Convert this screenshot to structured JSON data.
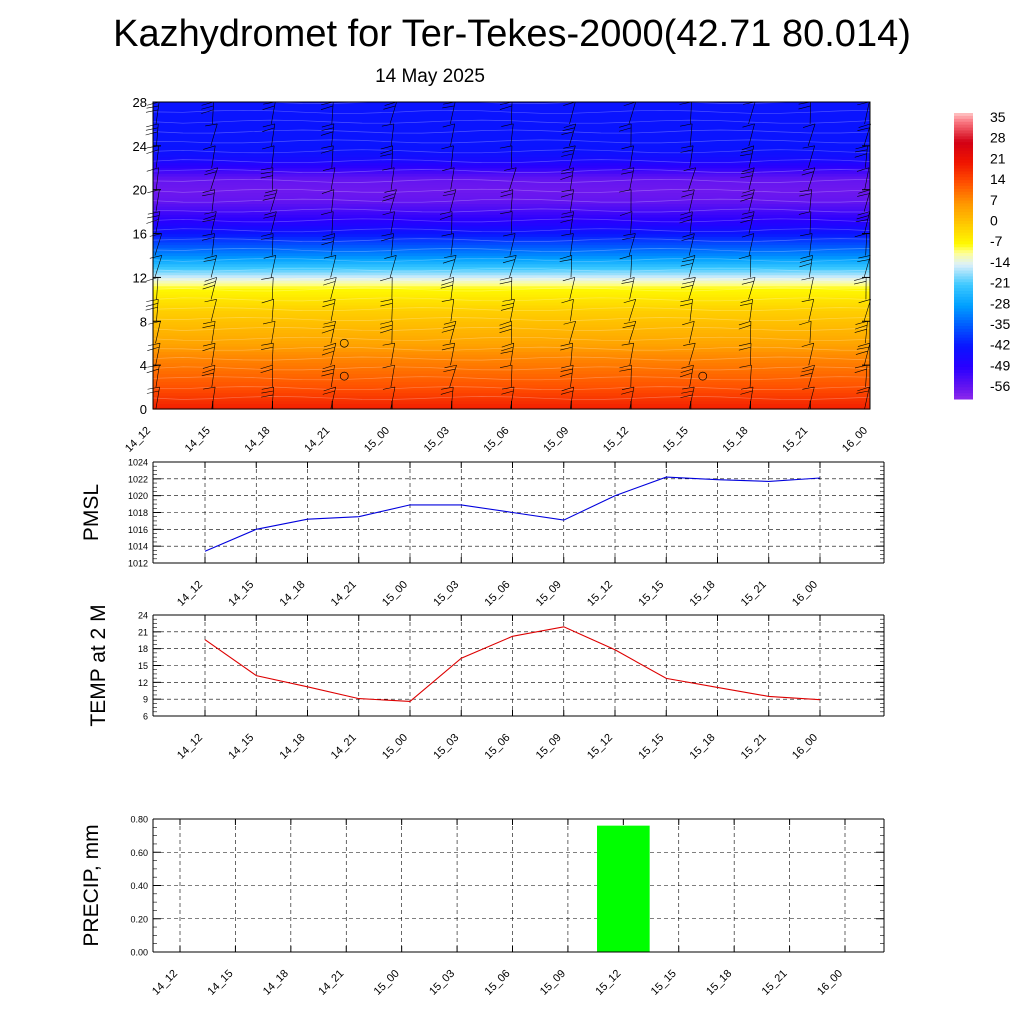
{
  "title": "Kazhydromet for Ter-Tekes-2000(42.71 80.014)",
  "subtitle": "14 May 2025",
  "time_labels": [
    "14_12",
    "14_15",
    "14_18",
    "14_21",
    "15_00",
    "15_03",
    "15_06",
    "15_09",
    "15_12",
    "15_15",
    "15_18",
    "15_21",
    "16_00"
  ],
  "chart_data": [
    {
      "type": "heatmap",
      "title": "",
      "xlabel": "",
      "ylabel": "",
      "x": [
        "14_12",
        "14_15",
        "14_18",
        "14_21",
        "15_00",
        "15_03",
        "15_06",
        "15_09",
        "15_12",
        "15_15",
        "15_18",
        "15_21",
        "16_00"
      ],
      "yticks": [
        0,
        4,
        8,
        12,
        16,
        20,
        24,
        28
      ],
      "ylim": [
        0,
        28
      ],
      "colorbar": {
        "labels": [
          "35",
          "28",
          "21",
          "14",
          "7",
          "0",
          "-7",
          "-14",
          "-21",
          "-28",
          "-35",
          "-42",
          "-49",
          "-56"
        ],
        "range": [
          -60,
          38
        ]
      },
      "temperature_profile": {
        "levels": [
          0,
          1,
          2,
          3,
          4,
          5,
          6,
          7,
          8,
          9,
          10,
          11,
          12,
          13,
          14,
          15,
          16,
          17,
          18,
          19,
          20,
          21,
          22,
          23,
          24,
          25,
          26,
          27,
          28
        ],
        "values": [
          20,
          17,
          14,
          12,
          10,
          8,
          5,
          3,
          1,
          -1,
          -4,
          -7,
          -14,
          -22,
          -30,
          -36,
          -42,
          -48,
          -52,
          -56,
          -57,
          -56,
          -50,
          -44,
          -42,
          -42,
          -42,
          -42,
          -42
        ]
      },
      "wind_barbs": "on"
    },
    {
      "type": "line",
      "ylabel": "PMSL",
      "x": [
        "14_12",
        "14_15",
        "14_18",
        "14_21",
        "15_00",
        "15_03",
        "15_06",
        "15_09",
        "15_12",
        "15_15",
        "15_18",
        "15_21",
        "16_00"
      ],
      "series": [
        {
          "values": [
            1013.4,
            1016.0,
            1017.2,
            1017.5,
            1018.9,
            1018.9,
            1018.0,
            1017.1,
            1020.0,
            1022.2,
            1021.9,
            1021.7,
            1022.1
          ],
          "color": "#0000dd"
        }
      ],
      "ylim": [
        1012,
        1024
      ],
      "yticks": [
        1012,
        1014,
        1016,
        1018,
        1020,
        1022,
        1024
      ],
      "grid": true
    },
    {
      "type": "line",
      "ylabel": "TEMP at 2 M",
      "x": [
        "14_12",
        "14_15",
        "14_18",
        "14_21",
        "15_00",
        "15_03",
        "15_06",
        "15_09",
        "15_12",
        "15_15",
        "15_18",
        "15_21",
        "16_00"
      ],
      "series": [
        {
          "values": [
            19.6,
            13.2,
            11.2,
            9.1,
            8.6,
            16.3,
            20.2,
            21.9,
            17.8,
            12.7,
            11.1,
            9.5,
            8.9
          ],
          "color": "#dd0000"
        }
      ],
      "ylim": [
        6,
        24
      ],
      "yticks": [
        6,
        9,
        12,
        15,
        18,
        21,
        24
      ],
      "grid": true
    },
    {
      "type": "bar",
      "ylabel": "PRECIP, mm",
      "categories": [
        "14_12",
        "14_15",
        "14_18",
        "14_21",
        "15_00",
        "15_03",
        "15_06",
        "15_09",
        "15_12",
        "15_15",
        "15_18",
        "15_21",
        "16_00"
      ],
      "values": [
        0,
        0,
        0,
        0,
        0,
        0,
        0,
        0,
        0.76,
        0,
        0,
        0,
        0
      ],
      "ylim": [
        0,
        0.8
      ],
      "yticks": [
        "0.00",
        "0.20",
        "0.40",
        "0.60",
        "0.80"
      ],
      "color": "#00ff00",
      "grid": true
    }
  ]
}
